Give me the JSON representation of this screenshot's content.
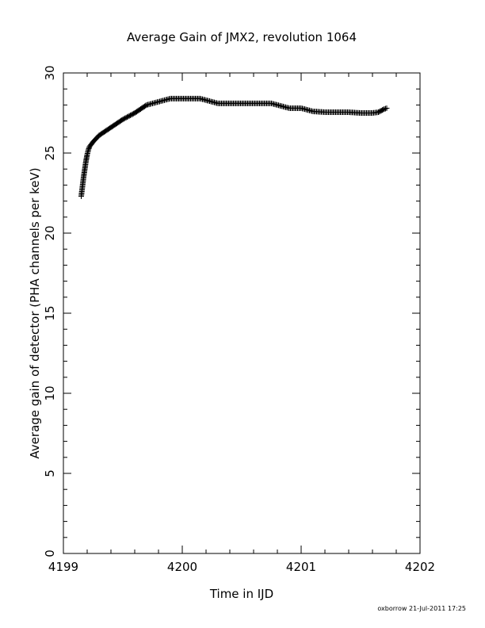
{
  "chart_data": {
    "type": "scatter",
    "title": "Average Gain of JMX2, revolution 1064",
    "xlabel": "Time in IJD",
    "ylabel": "Average gain of detector (PHA channels per keV)",
    "xlim": [
      4199,
      4202
    ],
    "ylim": [
      0,
      30
    ],
    "x_ticks": [
      "4199",
      "4200",
      "4201",
      "4202"
    ],
    "y_ticks": [
      "0",
      "5",
      "10",
      "15",
      "20",
      "25",
      "30"
    ],
    "marker": "plus",
    "grid": false,
    "legend": "none",
    "series": [
      {
        "x": [
          4199.15,
          4199.16,
          4199.17,
          4199.18,
          4199.19,
          4199.2,
          4199.21,
          4199.22,
          4199.25,
          4199.3,
          4199.4,
          4199.5,
          4199.6,
          4199.7,
          4199.8,
          4199.9,
          4200.0,
          4200.1,
          4200.15,
          4200.2,
          4200.3,
          4200.4,
          4200.5,
          4200.6,
          4200.75,
          4200.8,
          4200.9,
          4201.0,
          4201.1,
          4201.2,
          4201.3,
          4201.4,
          4201.5,
          4201.6,
          4201.65,
          4201.7,
          4201.72
        ],
        "y": [
          22.3,
          22.9,
          23.5,
          24.0,
          24.5,
          24.9,
          25.2,
          25.4,
          25.7,
          26.1,
          26.6,
          27.1,
          27.5,
          28.0,
          28.2,
          28.4,
          28.4,
          28.4,
          28.4,
          28.3,
          28.1,
          28.1,
          28.1,
          28.1,
          28.1,
          28.0,
          27.8,
          27.8,
          27.6,
          27.55,
          27.55,
          27.55,
          27.5,
          27.5,
          27.55,
          27.75,
          27.8
        ]
      }
    ]
  },
  "footer": {
    "credit": "oxborrow 21-Jul-2011 17:25"
  }
}
